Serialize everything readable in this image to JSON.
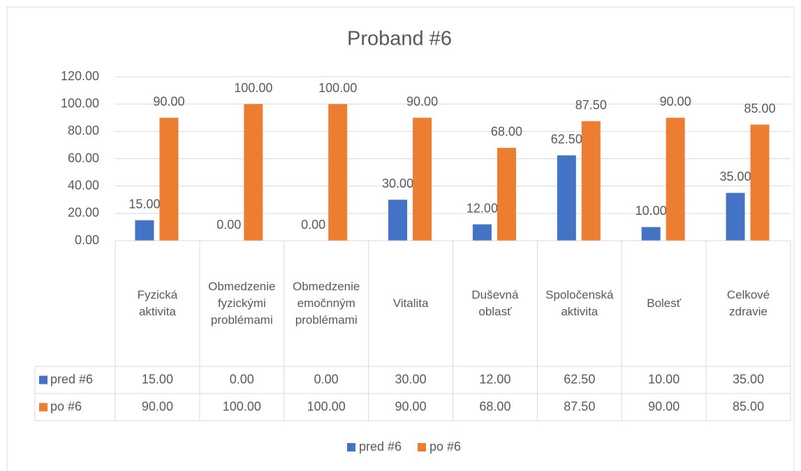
{
  "chart_data": {
    "type": "bar",
    "title": "Proband #6",
    "categories": [
      "Fyzická aktivita",
      "Obmedzenie fyzickými problémami",
      "Obmedzenie emočnným problémami",
      "Vitalita",
      "Duševná oblasť",
      "Spoločenská aktivita",
      "Bolesť",
      "Celkové zdravie"
    ],
    "series": [
      {
        "name": "pred #6",
        "color": "#4472c4",
        "values": [
          15,
          0,
          0,
          30,
          12,
          62.5,
          10,
          35
        ],
        "value_labels": [
          "15.00",
          "0.00",
          "0.00",
          "30.00",
          "12.00",
          "62.50",
          "10.00",
          "35.00"
        ]
      },
      {
        "name": "po #6",
        "color": "#ed7d31",
        "values": [
          90,
          100,
          100,
          90,
          68,
          87.5,
          90,
          85
        ],
        "value_labels": [
          "90.00",
          "100.00",
          "100.00",
          "90.00",
          "68.00",
          "87.50",
          "90.00",
          "85.00"
        ]
      }
    ],
    "ylim": [
      0,
      120
    ],
    "yticks": [
      {
        "value": 0,
        "label": "0.00"
      },
      {
        "value": 20,
        "label": "20.00"
      },
      {
        "value": 40,
        "label": "40.00"
      },
      {
        "value": 60,
        "label": "60.00"
      },
      {
        "value": 80,
        "label": "80.00"
      },
      {
        "value": 100,
        "label": "100.00"
      },
      {
        "value": 120,
        "label": "120.00"
      }
    ],
    "grid": true,
    "legend": "bottom",
    "data_table": true
  }
}
